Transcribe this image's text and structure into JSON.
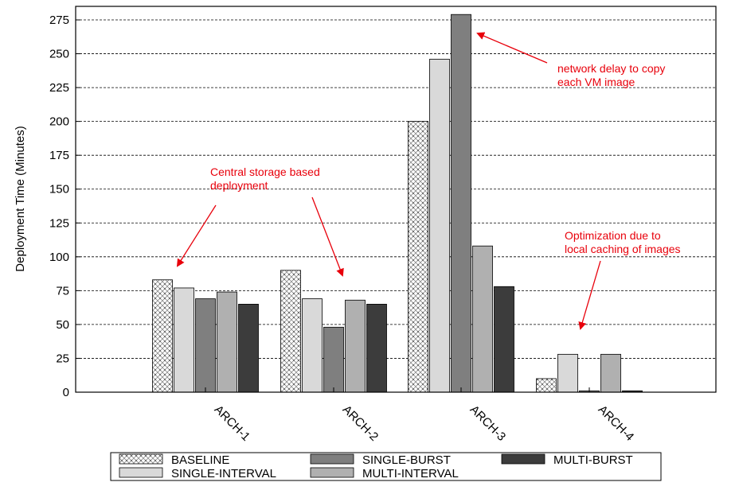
{
  "chart_data": {
    "type": "bar",
    "title": "",
    "xlabel": "",
    "ylabel": "Deployment Time (Minutes)",
    "ylim": [
      0,
      285
    ],
    "yticks": [
      0,
      25,
      50,
      75,
      100,
      125,
      150,
      175,
      200,
      225,
      250,
      275
    ],
    "grid": "horizontal dashed",
    "categories": [
      "ARCH-1",
      "ARCH-2",
      "ARCH-3",
      "ARCH-4"
    ],
    "series": [
      {
        "name": "BASELINE",
        "color": "#ffffff",
        "pattern": "dotted-crosshatch",
        "values": [
          83,
          90,
          200,
          10
        ]
      },
      {
        "name": "SINGLE-INTERVAL",
        "color": "#d9d9d9",
        "values": [
          77,
          69,
          246,
          28
        ]
      },
      {
        "name": "SINGLE-BURST",
        "color": "#7f7f7f",
        "values": [
          69,
          48,
          279,
          1
        ]
      },
      {
        "name": "MULTI-INTERVAL",
        "color": "#b0b0b0",
        "values": [
          74,
          68,
          108,
          28
        ]
      },
      {
        "name": "MULTI-BURST",
        "color": "#3c3c3c",
        "values": [
          65,
          65,
          78,
          1
        ]
      }
    ],
    "legend": {
      "position": "bottom",
      "columns": 3
    },
    "annotations": [
      {
        "lines": [
          "network delay to copy",
          "each VM image"
        ],
        "color": "#e8000b"
      },
      {
        "lines": [
          "Central storage based",
          "deployment"
        ],
        "color": "#e8000b"
      },
      {
        "lines": [
          "Optimization due to",
          "local caching of images"
        ],
        "color": "#e8000b"
      }
    ]
  }
}
